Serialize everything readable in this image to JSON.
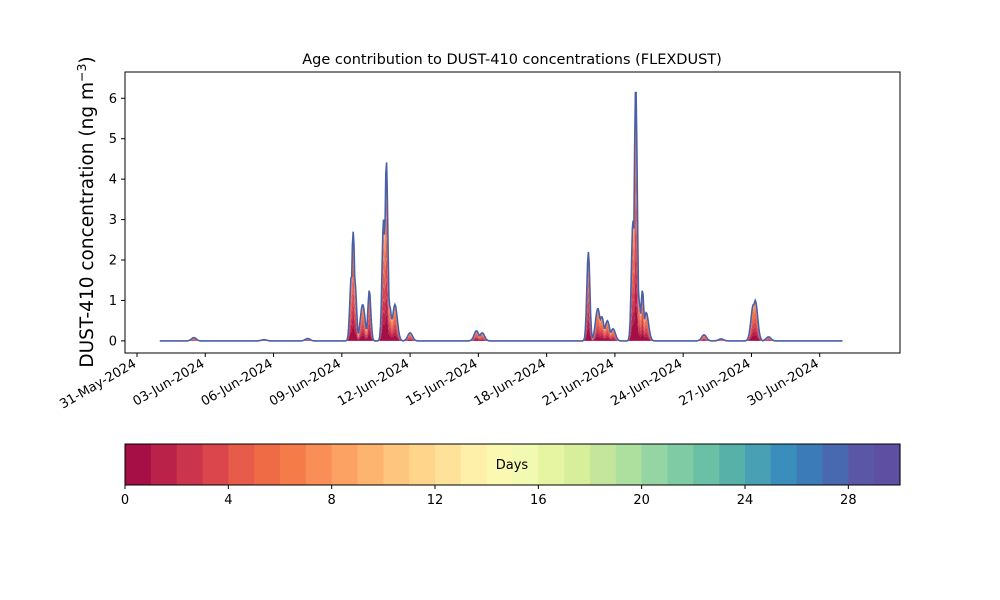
{
  "chart_data": {
    "type": "area",
    "title": "Age contribution to DUST-410 concentrations (FLEXDUST)",
    "ylabel": "DUST-410 concentration (ng m",
    "ylabel_sup": "−3",
    "ylabel_close": ")",
    "xlabel": "",
    "x_axis": "date",
    "xlim": [
      "2024-05-31T00:00",
      "2024-07-03T00:00"
    ],
    "ylim": [
      -0.3,
      6.65
    ],
    "yticks": [
      0,
      1,
      2,
      3,
      4,
      5,
      6
    ],
    "xticks": [
      "31-May-2024",
      "03-Jun-2024",
      "06-Jun-2024",
      "09-Jun-2024",
      "12-Jun-2024",
      "15-Jun-2024",
      "18-Jun-2024",
      "21-Jun-2024",
      "24-Jun-2024",
      "27-Jun-2024",
      "30-Jun-2024"
    ],
    "series_range": [
      "2024-06-01T00:00",
      "2024-07-01T00:00"
    ],
    "grid": false,
    "peaks": [
      {
        "t": "2024-06-02T12:00",
        "y": 0.08
      },
      {
        "t": "2024-06-05T14:00",
        "y": 0.03
      },
      {
        "t": "2024-06-07T12:00",
        "y": 0.06
      },
      {
        "t": "2024-06-09T10:00",
        "y": 1.6
      },
      {
        "t": "2024-06-09T12:00",
        "y": 2.7
      },
      {
        "t": "2024-06-09T14:00",
        "y": 1.4
      },
      {
        "t": "2024-06-09T22:00",
        "y": 0.9
      },
      {
        "t": "2024-06-10T05:00",
        "y": 1.25
      },
      {
        "t": "2024-06-10T20:00",
        "y": 3.0
      },
      {
        "t": "2024-06-10T23:00",
        "y": 4.45
      },
      {
        "t": "2024-06-11T02:00",
        "y": 0.9
      },
      {
        "t": "2024-06-11T06:00",
        "y": 0.6
      },
      {
        "t": "2024-06-11T08:00",
        "y": 0.9
      },
      {
        "t": "2024-06-12T00:00",
        "y": 0.2
      },
      {
        "t": "2024-06-14T22:00",
        "y": 0.25
      },
      {
        "t": "2024-06-15T04:00",
        "y": 0.2
      },
      {
        "t": "2024-06-19T20:00",
        "y": 2.2
      },
      {
        "t": "2024-06-20T06:00",
        "y": 0.8
      },
      {
        "t": "2024-06-20T10:00",
        "y": 0.6
      },
      {
        "t": "2024-06-20T16:00",
        "y": 0.5
      },
      {
        "t": "2024-06-20T22:00",
        "y": 0.3
      },
      {
        "t": "2024-06-21T19:00",
        "y": 3.0
      },
      {
        "t": "2024-06-21T22:00",
        "y": 6.35
      },
      {
        "t": "2024-06-22T01:00",
        "y": 1.0
      },
      {
        "t": "2024-06-22T05:00",
        "y": 1.25
      },
      {
        "t": "2024-06-22T09:00",
        "y": 0.7
      },
      {
        "t": "2024-06-24T22:00",
        "y": 0.15
      },
      {
        "t": "2024-06-25T16:00",
        "y": 0.05
      },
      {
        "t": "2024-06-27T02:00",
        "y": 0.9
      },
      {
        "t": "2024-06-27T04:00",
        "y": 1.0
      },
      {
        "t": "2024-06-27T18:00",
        "y": 0.1
      }
    ],
    "colorbar": {
      "label": "Days",
      "range": [
        0,
        30
      ],
      "ticks": [
        0,
        4,
        8,
        12,
        16,
        20,
        24,
        28
      ],
      "colors": [
        "#a50f45",
        "#ba2249",
        "#cb344d",
        "#da464c",
        "#e65b49",
        "#ef6b46",
        "#f57b49",
        "#f98f56",
        "#fca262",
        "#fdb46e",
        "#fdc57d",
        "#fed58b",
        "#fee299",
        "#feefa9",
        "#fbf8b2",
        "#f2f9b0",
        "#e6f5a1",
        "#d7ef9b",
        "#c3e69c",
        "#ade09f",
        "#95d5a3",
        "#7fcba4",
        "#6ac0a5",
        "#58b1a9",
        "#47a0b3",
        "#3a8ebb",
        "#3b7cb8",
        "#4869af",
        "#5a58a6",
        "#5e4fa2"
      ]
    }
  }
}
